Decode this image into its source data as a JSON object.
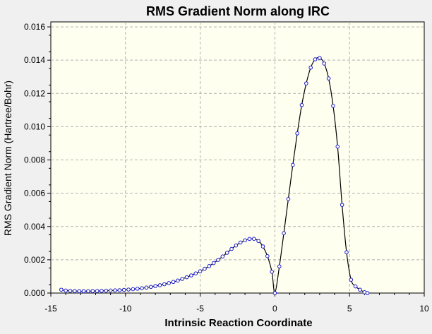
{
  "chart_data": {
    "type": "scatter",
    "title": "RMS Gradient Norm along IRC",
    "xlabel": "Intrinsic Reaction Coordinate",
    "ylabel": "RMS Gradient Norm (Hartree/Bohr)",
    "xlim": [
      -15,
      10
    ],
    "ylim": [
      0,
      0.0163
    ],
    "xticks": [
      "-15",
      "-10",
      "-5",
      "0",
      "5",
      "10"
    ],
    "yticks": [
      "0.000",
      "0.002",
      "0.004",
      "0.006",
      "0.008",
      "0.010",
      "0.012",
      "0.014",
      "0.016"
    ],
    "grid": true,
    "connect_points": true,
    "colors": {
      "plot_background": "#fffff0",
      "page_background": "#f0f0f0",
      "line": "#000000",
      "marker_stroke": "#1a1acc",
      "grid": "#b0b0b0"
    },
    "series": [
      {
        "x": [
          -14.3,
          -14.0,
          -13.7,
          -13.4,
          -13.1,
          -12.8,
          -12.5,
          -12.2,
          -11.9,
          -11.6,
          -11.3,
          -11.0,
          -10.7,
          -10.4,
          -10.1,
          -9.8,
          -9.5,
          -9.2,
          -8.9,
          -8.6,
          -8.3,
          -8.0,
          -7.7,
          -7.4,
          -7.1,
          -6.8,
          -6.5,
          -6.2,
          -5.9,
          -5.6,
          -5.3,
          -5.0,
          -4.7,
          -4.4,
          -4.1,
          -3.8,
          -3.5,
          -3.2,
          -2.9,
          -2.6,
          -2.3,
          -2.0,
          -1.7,
          -1.4,
          -1.1,
          -0.8,
          -0.5,
          -0.2,
          0.0,
          0.3,
          0.6,
          0.9,
          1.2,
          1.5,
          1.8,
          2.1,
          2.4,
          2.7,
          3.0,
          3.3,
          3.6,
          3.9,
          4.2,
          4.5,
          4.8,
          5.1,
          5.4,
          5.7,
          6.0,
          6.2
        ],
        "y": [
          0.0002,
          0.00015,
          0.00013,
          0.00012,
          0.00011,
          0.00011,
          0.00011,
          0.00012,
          0.00012,
          0.00013,
          0.00014,
          0.00015,
          0.00016,
          0.00017,
          0.00019,
          0.00021,
          0.00023,
          0.00026,
          0.00029,
          0.00033,
          0.00037,
          0.00042,
          0.00047,
          0.00053,
          0.0006,
          0.00067,
          0.00075,
          0.00085,
          0.00095,
          0.00106,
          0.00118,
          0.00131,
          0.00146,
          0.00162,
          0.0018,
          0.00199,
          0.0022,
          0.00242,
          0.00265,
          0.00286,
          0.00304,
          0.00317,
          0.00325,
          0.00326,
          0.00313,
          0.0028,
          0.00222,
          0.00128,
          0.0,
          0.0016,
          0.0036,
          0.00565,
          0.0077,
          0.0096,
          0.0113,
          0.0126,
          0.01355,
          0.01405,
          0.01413,
          0.0138,
          0.0129,
          0.01125,
          0.0088,
          0.0053,
          0.00245,
          0.0008,
          0.0004,
          0.0002,
          5e-05,
          0.0
        ]
      }
    ]
  }
}
